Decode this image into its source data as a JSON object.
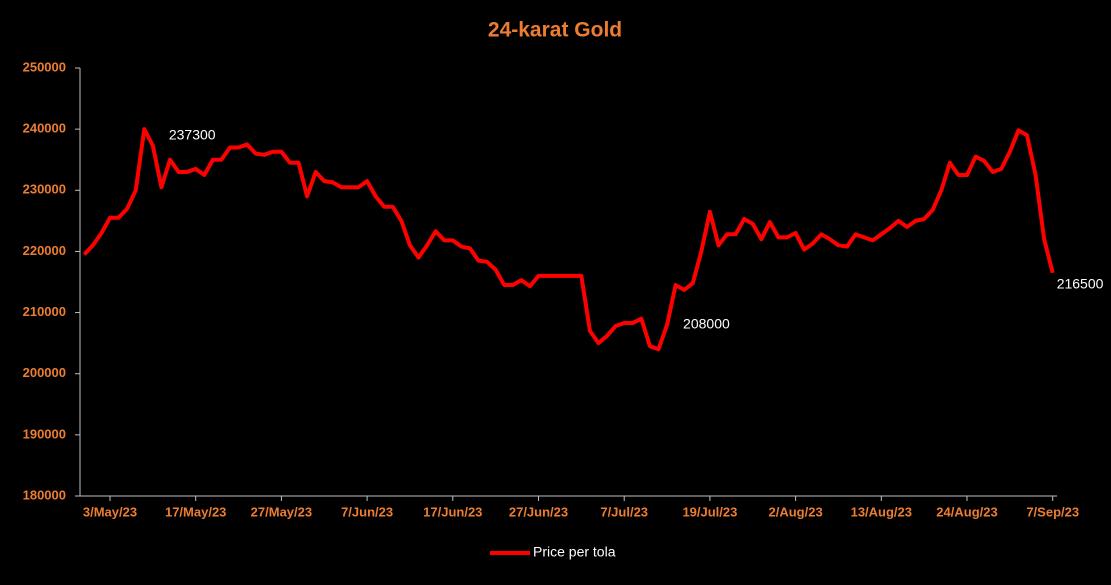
{
  "chart_data": {
    "type": "line",
    "title": "24-karat Gold",
    "categories": [
      null,
      null,
      null,
      "3/May/23",
      null,
      null,
      null,
      null,
      null,
      null,
      null,
      null,
      null,
      "17/May/23",
      null,
      null,
      null,
      null,
      null,
      null,
      null,
      null,
      null,
      "27/May/23",
      null,
      null,
      null,
      null,
      null,
      null,
      null,
      null,
      null,
      "7/Jun/23",
      null,
      null,
      null,
      null,
      null,
      null,
      null,
      null,
      null,
      "17/Jun/23",
      null,
      null,
      null,
      null,
      null,
      null,
      null,
      null,
      null,
      "27/Jun/23",
      null,
      null,
      null,
      null,
      null,
      null,
      null,
      null,
      null,
      "7/Jul/23",
      null,
      null,
      null,
      null,
      null,
      null,
      null,
      null,
      null,
      "19/Jul/23",
      null,
      null,
      null,
      null,
      null,
      null,
      null,
      null,
      null,
      "2/Aug/23",
      null,
      null,
      null,
      null,
      null,
      null,
      null,
      null,
      null,
      "13/Aug/23",
      null,
      null,
      null,
      null,
      null,
      null,
      null,
      null,
      null,
      "24/Aug/23",
      null,
      null,
      null,
      null,
      null,
      null,
      null,
      null,
      null,
      "7/Sep/23"
    ],
    "series": [
      {
        "name": "Price per tola",
        "color": "#ff0000",
        "values": [
          219500,
          221000,
          223000,
          225500,
          225500,
          227000,
          230000,
          240000,
          237300,
          230500,
          235000,
          233000,
          233000,
          233500,
          232500,
          235000,
          235000,
          237000,
          237000,
          237500,
          236000,
          235800,
          236300,
          236300,
          234500,
          234500,
          229000,
          233000,
          231500,
          231300,
          230500,
          230500,
          230500,
          231500,
          229000,
          227300,
          227300,
          225000,
          221000,
          219000,
          221000,
          223300,
          221800,
          221800,
          220800,
          220500,
          218500,
          218300,
          217000,
          214500,
          214500,
          215300,
          214300,
          216000,
          216000,
          216000,
          216000,
          216000,
          216000,
          207000,
          205000,
          206200,
          207800,
          208300,
          208300,
          209000,
          204500,
          204000,
          208000,
          214500,
          213700,
          214800,
          220000,
          226500,
          221000,
          222800,
          222800,
          225300,
          224500,
          222000,
          224800,
          222300,
          222300,
          223000,
          220300,
          221300,
          222800,
          222000,
          221000,
          220800,
          222800,
          222300,
          221800,
          222800,
          223800,
          225000,
          224000,
          225000,
          225300,
          226800,
          230000,
          234500,
          232500,
          232500,
          235500,
          234800,
          233000,
          233500,
          236300,
          239800,
          239000,
          232500,
          222000,
          216500
        ]
      }
    ],
    "data_labels": [
      8,
      68,
      113
    ],
    "ylim": [
      180000,
      250000
    ],
    "yticks": [
      180000,
      190000,
      200000,
      210000,
      220000,
      230000,
      240000,
      250000
    ],
    "legend": "bottom"
  }
}
